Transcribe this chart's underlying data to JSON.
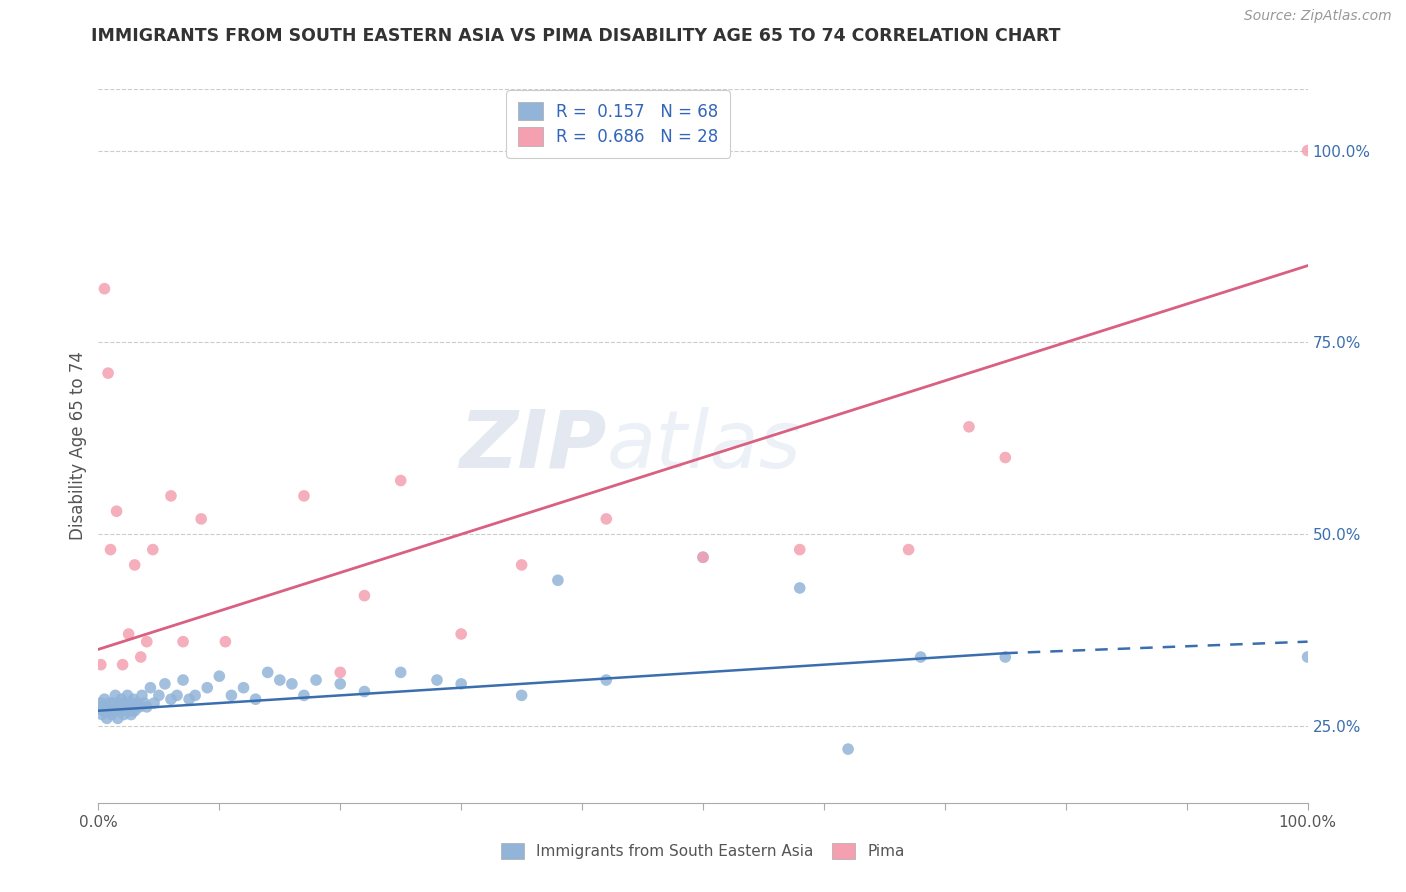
{
  "title": "IMMIGRANTS FROM SOUTH EASTERN ASIA VS PIMA DISABILITY AGE 65 TO 74 CORRELATION CHART",
  "source": "Source: ZipAtlas.com",
  "ylabel": "Disability Age 65 to 74",
  "legend_label1": "Immigrants from South Eastern Asia",
  "legend_label2": "Pima",
  "R1": 0.157,
  "N1": 68,
  "R2": 0.686,
  "N2": 28,
  "color_blue": "#92B4D9",
  "color_pink": "#F4A0B0",
  "color_line_blue": "#3A6EAF",
  "color_line_pink": "#D96080",
  "watermark_zip": "ZIP",
  "watermark_atlas": "atlas",
  "xlim": [
    0,
    100
  ],
  "ylim_data_min": 15,
  "ylim_data_max": 100,
  "grid_color": "#CCCCCC",
  "background_color": "#FFFFFF",
  "blue_x": [
    0.1,
    0.2,
    0.3,
    0.4,
    0.5,
    0.6,
    0.7,
    0.8,
    0.9,
    1.0,
    1.1,
    1.2,
    1.3,
    1.4,
    1.5,
    1.6,
    1.7,
    1.8,
    1.9,
    2.0,
    2.1,
    2.2,
    2.3,
    2.4,
    2.5,
    2.6,
    2.7,
    2.8,
    2.9,
    3.0,
    3.2,
    3.4,
    3.6,
    3.8,
    4.0,
    4.3,
    4.6,
    5.0,
    5.5,
    6.0,
    6.5,
    7.0,
    7.5,
    8.0,
    9.0,
    10.0,
    11.0,
    12.0,
    13.0,
    14.0,
    15.0,
    16.0,
    17.0,
    18.0,
    20.0,
    22.0,
    25.0,
    28.0,
    30.0,
    35.0,
    38.0,
    42.0,
    50.0,
    58.0,
    62.0,
    68.0,
    75.0,
    100.0
  ],
  "blue_y": [
    27.5,
    28.0,
    26.5,
    27.0,
    28.5,
    27.0,
    26.0,
    27.5,
    28.0,
    27.0,
    26.5,
    28.0,
    27.0,
    29.0,
    27.5,
    26.0,
    28.0,
    27.0,
    28.5,
    27.0,
    26.5,
    28.0,
    27.5,
    29.0,
    27.0,
    28.0,
    26.5,
    27.0,
    28.5,
    27.0,
    28.0,
    27.5,
    29.0,
    28.0,
    27.5,
    30.0,
    28.0,
    29.0,
    30.5,
    28.5,
    29.0,
    31.0,
    28.5,
    29.0,
    30.0,
    31.5,
    29.0,
    30.0,
    28.5,
    32.0,
    31.0,
    30.5,
    29.0,
    31.0,
    30.5,
    29.5,
    32.0,
    31.0,
    30.5,
    29.0,
    44.0,
    31.0,
    47.0,
    43.0,
    22.0,
    34.0,
    34.0,
    34.0
  ],
  "pink_x": [
    0.2,
    0.5,
    0.8,
    1.0,
    1.5,
    2.0,
    2.5,
    3.0,
    3.5,
    4.0,
    4.5,
    6.0,
    7.0,
    8.5,
    10.5,
    17.0,
    20.0,
    22.0,
    25.0,
    30.0,
    35.0,
    42.0,
    50.0,
    58.0,
    67.0,
    72.0,
    75.0,
    100.0
  ],
  "pink_y": [
    33.0,
    82.0,
    71.0,
    48.0,
    53.0,
    33.0,
    37.0,
    46.0,
    34.0,
    36.0,
    48.0,
    55.0,
    36.0,
    52.0,
    36.0,
    55.0,
    32.0,
    42.0,
    57.0,
    37.0,
    46.0,
    52.0,
    47.0,
    48.0,
    48.0,
    64.0,
    60.0,
    100.0
  ],
  "pink_line_x0": 0,
  "pink_line_y0": 35.0,
  "pink_line_x1": 100,
  "pink_line_y1": 85.0,
  "blue_line_x0": 0,
  "blue_line_y0": 27.0,
  "blue_line_x1": 75,
  "blue_line_y1": 34.5,
  "blue_dash_x0": 75,
  "blue_dash_y0": 34.5,
  "blue_dash_x1": 100,
  "blue_dash_y1": 36.0,
  "yticks": [
    25,
    50,
    75,
    100
  ],
  "xtick_positions": [
    0,
    10,
    20,
    30,
    40,
    50,
    60,
    70,
    80,
    90,
    100
  ]
}
